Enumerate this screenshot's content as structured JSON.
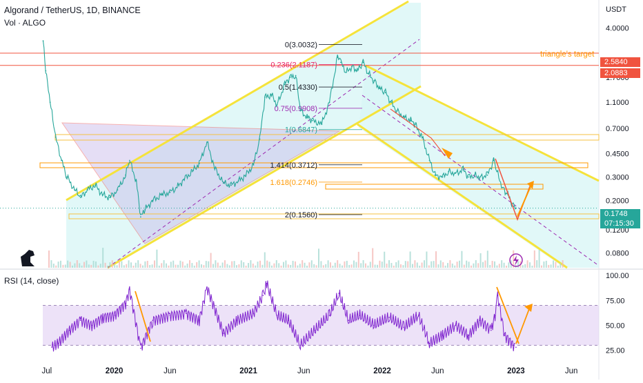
{
  "header": {
    "symbol": "Algorand / TetherUS, 1D, BINANCE",
    "volume_label": "Vol · ALGO",
    "rsi_label": "RSI (14, close)",
    "currency": "USDT"
  },
  "annotations": {
    "triangle_target": "triangle's target",
    "fib_levels": [
      {
        "label": "0(3.0032)",
        "value": 3.0032,
        "color": "#131722"
      },
      {
        "label": "0.236(2.1187)",
        "value": 2.1187,
        "color": "#e91e63"
      },
      {
        "label": "0.5(1.4330)",
        "value": 1.433,
        "color": "#131722"
      },
      {
        "label": "0.75(0.9908)",
        "value": 0.9908,
        "color": "#9c27b0"
      },
      {
        "label": "1(0.6847)",
        "value": 0.6847,
        "color": "#26a69a"
      },
      {
        "label": "1.414(0.3712)",
        "value": 0.3712,
        "color": "#131722"
      },
      {
        "label": "1.618(0.2746)",
        "value": 0.2746,
        "color": "#ff9800"
      },
      {
        "label": "2(0.1560)",
        "value": 0.156,
        "color": "#131722"
      }
    ]
  },
  "price_tags": [
    {
      "label": "2.5840",
      "value": 2.584,
      "color": "#f0533f"
    },
    {
      "label": "2.0883",
      "value": 2.0883,
      "color": "#f0533f"
    },
    {
      "label": "0.1748",
      "value": 0.1748,
      "color": "#26a69a",
      "sub": "07:15:30"
    }
  ],
  "chart_data": [
    {
      "type": "line",
      "title": "Algorand / TetherUS, 1D, BINANCE",
      "yscale": "log",
      "ylim": [
        0.062,
        6.2
      ],
      "y_ticks": [
        "4.0000",
        "1.7000",
        "1.1000",
        "0.7000",
        "0.4500",
        "0.3000",
        "0.2000",
        "0.1200",
        "0.0800"
      ],
      "y_tick_values": [
        4.0,
        1.7,
        1.1,
        0.7,
        0.45,
        0.3,
        0.2,
        0.12,
        0.08
      ],
      "x_ticks": [
        "Jul",
        "2020",
        "Jun",
        "2021",
        "Jun",
        "2022",
        "Jun",
        "2023",
        "Jun"
      ],
      "x_tick_dates": [
        "2019-07",
        "2020-01",
        "2020-06",
        "2021-01",
        "2021-06",
        "2022-01",
        "2022-06",
        "2023-01",
        "2023-06"
      ],
      "xlim": [
        "2019-06-20",
        "2023-08-15"
      ],
      "series": [
        {
          "x": [
            "2019-06-21",
            "2019-06-28",
            "2019-07-10",
            "2019-07-25",
            "2019-08-10",
            "2019-08-25",
            "2019-09-15",
            "2019-10-01",
            "2019-10-20",
            "2019-11-10",
            "2019-11-30",
            "2019-12-20",
            "2020-01-10",
            "2020-02-01",
            "2020-02-12",
            "2020-03-01",
            "2020-03-13",
            "2020-03-25",
            "2020-04-15",
            "2020-05-10",
            "2020-06-01",
            "2020-06-20",
            "2020-07-10",
            "2020-08-01",
            "2020-08-20",
            "2020-09-10",
            "2020-10-01",
            "2020-10-25",
            "2020-11-15",
            "2020-12-05",
            "2020-12-25",
            "2021-01-15",
            "2021-02-01",
            "2021-02-15",
            "2021-03-05",
            "2021-03-20",
            "2021-04-10",
            "2021-04-25",
            "2021-05-10",
            "2021-05-23",
            "2021-06-10",
            "2021-06-25",
            "2021-07-20",
            "2021-08-10",
            "2021-09-01",
            "2021-09-10",
            "2021-09-25",
            "2021-10-10",
            "2021-10-25",
            "2021-11-10",
            "2021-11-25",
            "2021-12-10",
            "2021-12-25",
            "2022-01-10",
            "2022-01-25",
            "2022-02-10",
            "2022-03-01",
            "2022-03-20",
            "2022-04-01",
            "2022-04-20",
            "2022-05-10",
            "2022-05-25",
            "2022-06-15",
            "2022-07-01",
            "2022-07-20",
            "2022-08-10",
            "2022-08-25",
            "2022-09-10",
            "2022-09-25",
            "2022-10-15",
            "2022-11-01",
            "2022-11-10",
            "2022-11-25",
            "2022-12-10",
            "2022-12-25",
            "2023-01-01"
          ],
          "values": [
            3.2,
            1.9,
            1.1,
            0.6,
            0.4,
            0.3,
            0.24,
            0.21,
            0.24,
            0.26,
            0.22,
            0.21,
            0.24,
            0.31,
            0.4,
            0.28,
            0.15,
            0.17,
            0.2,
            0.22,
            0.23,
            0.25,
            0.29,
            0.33,
            0.38,
            0.55,
            0.35,
            0.27,
            0.26,
            0.28,
            0.31,
            0.37,
            0.58,
            1.2,
            1.25,
            1.05,
            1.5,
            1.7,
            1.75,
            0.95,
            0.85,
            0.8,
            0.75,
            1.1,
            2.4,
            2.2,
            1.85,
            2.05,
            1.9,
            2.2,
            1.8,
            1.6,
            1.4,
            1.3,
            1.1,
            0.95,
            0.85,
            0.8,
            0.75,
            0.6,
            0.4,
            0.31,
            0.3,
            0.33,
            0.32,
            0.34,
            0.3,
            0.31,
            0.3,
            0.31,
            0.4,
            0.33,
            0.25,
            0.22,
            0.18,
            0.1748
          ]
        }
      ]
    },
    {
      "type": "line",
      "title": "RSI (14, close)",
      "ylim": [
        15,
        105
      ],
      "y_ticks": [
        "100.00",
        "75.00",
        "50.00",
        "25.00"
      ],
      "y_tick_values": [
        100,
        75,
        50,
        25
      ],
      "band": [
        30,
        70
      ],
      "series": [
        {
          "x": [
            "2019-07-15",
            "2019-08-01",
            "2019-09-01",
            "2019-10-01",
            "2019-11-01",
            "2019-12-01",
            "2020-01-01",
            "2020-02-01",
            "2020-02-12",
            "2020-03-13",
            "2020-04-15",
            "2020-06-01",
            "2020-07-15",
            "2020-08-20",
            "2020-09-10",
            "2020-10-25",
            "2020-12-01",
            "2021-01-15",
            "2021-02-10",
            "2021-02-20",
            "2021-03-20",
            "2021-04-20",
            "2021-05-23",
            "2021-07-01",
            "2021-08-10",
            "2021-09-05",
            "2021-10-01",
            "2021-11-01",
            "2021-12-10",
            "2022-01-20",
            "2022-03-01",
            "2022-04-10",
            "2022-05-10",
            "2022-06-15",
            "2022-07-20",
            "2022-08-25",
            "2022-09-25",
            "2022-10-25",
            "2022-11-05",
            "2022-11-12",
            "2022-12-01",
            "2022-12-25",
            "2023-01-01"
          ],
          "values": [
            28,
            32,
            45,
            55,
            50,
            58,
            60,
            72,
            86,
            27,
            55,
            60,
            62,
            55,
            88,
            42,
            55,
            62,
            80,
            92,
            60,
            55,
            30,
            45,
            60,
            82,
            55,
            60,
            50,
            58,
            48,
            60,
            32,
            40,
            50,
            40,
            55,
            45,
            60,
            80,
            40,
            30,
            28
          ]
        }
      ]
    }
  ]
}
